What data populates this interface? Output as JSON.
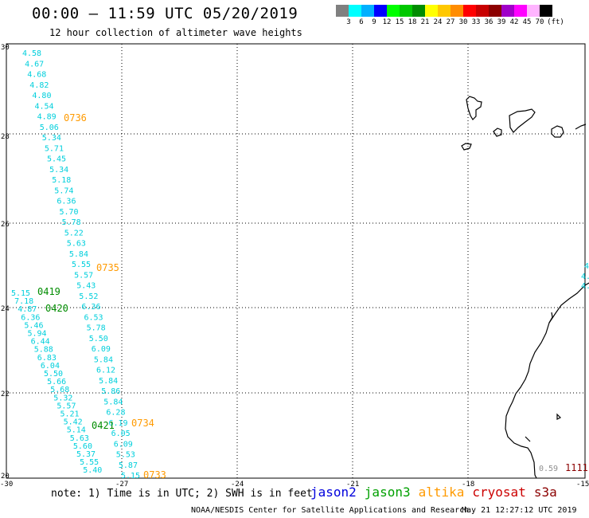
{
  "header": {
    "title": "00:00 — 11:59 UTC 05/20/2019",
    "subtitle": "12 hour collection of altimeter wave heights"
  },
  "legend": {
    "unit": "(ft)",
    "colors": [
      "#808080",
      "#00ffff",
      "#00b0ff",
      "#0000ff",
      "#00ff00",
      "#00c800",
      "#008c00",
      "#ffff00",
      "#ffc800",
      "#ff8c00",
      "#ff0000",
      "#c80000",
      "#8c0000",
      "#a000c8",
      "#ff00ff",
      "#ffb4ff",
      "#000000"
    ],
    "labels": [
      "3",
      "6",
      "9",
      "12",
      "15",
      "18",
      "21",
      "24",
      "27",
      "30",
      "33",
      "36",
      "39",
      "42",
      "45",
      "70"
    ]
  },
  "axes": {
    "x_ticks": [
      "-30",
      "-27",
      "-24",
      "-21",
      "-18",
      "-15"
    ],
    "y_ticks": [
      "30",
      "28",
      "26",
      "24",
      "22",
      "20"
    ]
  },
  "observations": {
    "track_a": [
      {
        "v": "4.58"
      },
      {
        "v": "4.67"
      },
      {
        "v": "4.68"
      },
      {
        "v": "4.82"
      },
      {
        "v": "4.80"
      },
      {
        "v": "4.54"
      },
      {
        "v": "4.89"
      },
      {
        "v": "5.06"
      },
      {
        "v": "5.34"
      },
      {
        "v": "5.71"
      },
      {
        "v": "5.45"
      },
      {
        "v": "5.34"
      },
      {
        "v": "5.18"
      },
      {
        "v": "5.74"
      },
      {
        "v": "6.36"
      },
      {
        "v": "5.70"
      },
      {
        "v": "5.78"
      },
      {
        "v": "5.22"
      },
      {
        "v": "5.63"
      },
      {
        "v": "5.84"
      },
      {
        "v": "5.55"
      },
      {
        "v": "5.57"
      },
      {
        "v": "5.43"
      },
      {
        "v": "5.52"
      },
      {
        "v": "6.36"
      },
      {
        "v": "6.53"
      },
      {
        "v": "5.78"
      },
      {
        "v": "5.50"
      },
      {
        "v": "6.09"
      },
      {
        "v": "5.84"
      },
      {
        "v": "6.12"
      },
      {
        "v": "5.84"
      },
      {
        "v": "5.86"
      },
      {
        "v": "5.84"
      },
      {
        "v": "6.28"
      },
      {
        "v": "6.19"
      },
      {
        "v": "6.05"
      },
      {
        "v": "6.09"
      },
      {
        "v": "5.53"
      },
      {
        "v": "5.87"
      },
      {
        "v": "5.15"
      }
    ],
    "track_b": [
      {
        "v": "5.15"
      },
      {
        "v": "7.18"
      },
      {
        "v": "4.87"
      },
      {
        "v": "6.36"
      },
      {
        "v": "5.46"
      },
      {
        "v": "5.94"
      },
      {
        "v": "6.44"
      },
      {
        "v": "5.88"
      },
      {
        "v": "6.83"
      },
      {
        "v": "6.04"
      },
      {
        "v": "5.50"
      },
      {
        "v": "5.66"
      },
      {
        "v": "5.68"
      },
      {
        "v": "5.32"
      },
      {
        "v": "5.57"
      },
      {
        "v": "5.21"
      },
      {
        "v": "5.42"
      },
      {
        "v": "5.14"
      },
      {
        "v": "5.63"
      },
      {
        "v": "5.60"
      },
      {
        "v": "5.37"
      },
      {
        "v": "5.55"
      },
      {
        "v": "5.40"
      }
    ],
    "east_partial": [
      "4",
      "4.",
      "4."
    ],
    "misc_value": "0.59",
    "misc_time": "1111"
  },
  "time_labels": {
    "altika": [
      "0736",
      "0735",
      "0734",
      "0733"
    ],
    "jason3": [
      "0419",
      "0420",
      "0421"
    ]
  },
  "note": "note: 1) Time is in UTC; 2) SWH is in feet",
  "satellites": [
    {
      "name": "jason2",
      "color": "#0000dd"
    },
    {
      "name": "jason3",
      "color": "#00a000"
    },
    {
      "name": "altika",
      "color": "#ff9a00"
    },
    {
      "name": "cryosat",
      "color": "#cc0000"
    },
    {
      "name": "s3a",
      "color": "#8b0000"
    }
  ],
  "footer": {
    "credit": "NOAA/NESDIS Center for Satellite Applications and Research",
    "timestamp": "May 21 12:27:12 UTC 2019"
  }
}
